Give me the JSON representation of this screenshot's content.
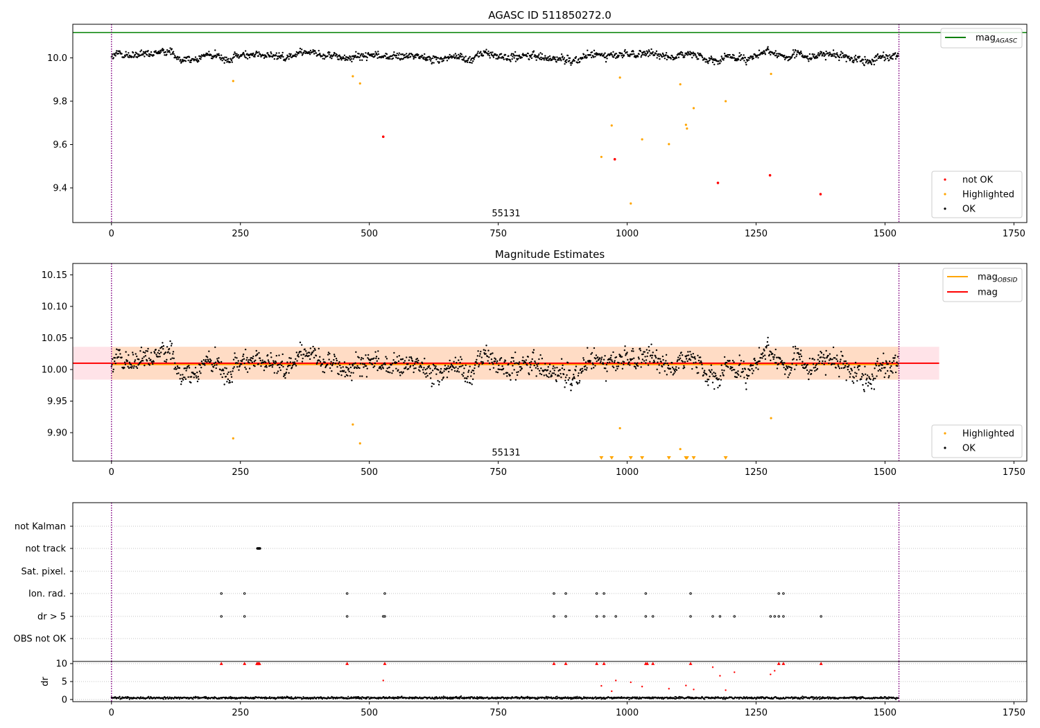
{
  "colors": {
    "ok": "#000000",
    "not_ok": "#ff0000",
    "highlighted": "#ffa500",
    "agasc_line": "#008000",
    "mag_line": "#ff0000",
    "obsid_line": "#ffa500",
    "obs_boundary": "#800080",
    "band": "#ffc0cb",
    "band_obsid": "#ffdab9",
    "grid": "#b0b0b0"
  },
  "chart_data": [
    {
      "type": "scatter",
      "title": "AGASC ID 511850272.0",
      "xlim": [
        -75,
        1775
      ],
      "ylim": [
        9.24,
        10.155
      ],
      "xticks": [
        0,
        250,
        500,
        750,
        1000,
        1250,
        1500,
        1750
      ],
      "yticks": [
        9.4,
        9.6,
        9.8,
        10.0
      ],
      "ytick_labels": [
        "9.4",
        "9.6",
        "9.8",
        "10.0"
      ],
      "annotation": "55131",
      "obs_boundaries": [
        0,
        1527
      ],
      "lines": [
        {
          "name": "mag",
          "sub": "AGASC",
          "y": 10.117,
          "x": [
            -75,
            1775
          ],
          "color": "#008000"
        }
      ],
      "legend_upper": [
        {
          "label": "mag",
          "sub": "AGASC",
          "kind": "line",
          "color": "#008000"
        }
      ],
      "legend_lower": [
        {
          "label": "not OK",
          "kind": "dot",
          "color": "#ff0000"
        },
        {
          "label": "Highlighted",
          "kind": "dot",
          "color": "#ffa500"
        },
        {
          "label": "OK",
          "kind": "dot",
          "color": "#000000"
        }
      ],
      "ok_series": {
        "n": 1527,
        "baseline": 10.008,
        "spread": 0.028
      },
      "highlighted": [
        {
          "x": 236,
          "y": 9.893
        },
        {
          "x": 468,
          "y": 9.915
        },
        {
          "x": 482,
          "y": 9.882
        },
        {
          "x": 950,
          "y": 9.543
        },
        {
          "x": 970,
          "y": 9.688
        },
        {
          "x": 986,
          "y": 9.909
        },
        {
          "x": 1007,
          "y": 9.328
        },
        {
          "x": 1029,
          "y": 9.624
        },
        {
          "x": 1081,
          "y": 9.602
        },
        {
          "x": 1103,
          "y": 9.878
        },
        {
          "x": 1114,
          "y": 9.691
        },
        {
          "x": 1116,
          "y": 9.674
        },
        {
          "x": 1129,
          "y": 9.768
        },
        {
          "x": 1191,
          "y": 9.8
        },
        {
          "x": 1279,
          "y": 9.926
        }
      ],
      "not_ok": [
        {
          "x": 527,
          "y": 9.636
        },
        {
          "x": 976,
          "y": 9.532
        },
        {
          "x": 1176,
          "y": 9.423
        },
        {
          "x": 1277,
          "y": 9.458
        },
        {
          "x": 1375,
          "y": 9.371
        }
      ]
    },
    {
      "type": "scatter",
      "title": "Magnitude Estimates",
      "xlim": [
        -75,
        1775
      ],
      "ylim": [
        9.855,
        10.168
      ],
      "xticks": [
        0,
        250,
        500,
        750,
        1000,
        1250,
        1500,
        1750
      ],
      "yticks": [
        9.9,
        9.95,
        10.0,
        10.05,
        10.1,
        10.15
      ],
      "ytick_labels": [
        "9.90",
        "9.95",
        "10.00",
        "10.05",
        "10.10",
        "10.15"
      ],
      "annotation": "55131",
      "obs_boundaries": [
        0,
        1527
      ],
      "lines": [
        {
          "name": "mag",
          "sub": "OBSID",
          "y": 10.008,
          "x": [
            0,
            1527
          ],
          "color": "#ffa500"
        },
        {
          "name": "mag",
          "sub": "",
          "y": 10.01,
          "x": [
            -75,
            1605
          ],
          "color": "#ff0000"
        }
      ],
      "bands": [
        {
          "x": [
            -75,
            1605
          ],
          "y": [
            9.984,
            10.036
          ],
          "color": "#ffc0cb",
          "opacity": 0.45
        },
        {
          "x": [
            0,
            1527
          ],
          "y": [
            9.984,
            10.036
          ],
          "color": "#ffdab9",
          "opacity": 0.75
        }
      ],
      "legend_upper": [
        {
          "label": "mag",
          "sub": "OBSID",
          "kind": "line",
          "color": "#ffa500"
        },
        {
          "label": "mag",
          "sub": "",
          "kind": "line",
          "color": "#ff0000"
        }
      ],
      "legend_lower": [
        {
          "label": "Highlighted",
          "kind": "dot",
          "color": "#ffa500"
        },
        {
          "label": "OK",
          "kind": "dot",
          "color": "#000000"
        }
      ],
      "ok_series": {
        "n": 1527,
        "baseline": 10.008,
        "spread": 0.028
      },
      "highlighted": [
        {
          "x": 236,
          "y": 9.891
        },
        {
          "x": 468,
          "y": 9.913
        },
        {
          "x": 482,
          "y": 9.883
        },
        {
          "x": 986,
          "y": 9.907
        },
        {
          "x": 1103,
          "y": 9.874
        },
        {
          "x": 1279,
          "y": 9.923
        }
      ],
      "clipped_low": [
        950,
        970,
        1007,
        1029,
        1081,
        1114,
        1116,
        1129,
        1191
      ]
    },
    {
      "type": "scatter",
      "title": "",
      "xlim": [
        -75,
        1775
      ],
      "ylim": [
        -0.6,
        10.6
      ],
      "xticks": [
        0,
        250,
        500,
        750,
        1000,
        1250,
        1500,
        1750
      ],
      "yticks": [
        0,
        5,
        10
      ],
      "ytick_labels": [
        "0",
        "5",
        "10"
      ],
      "ylabel": "dr",
      "obs_boundaries": [
        0,
        1527
      ],
      "flag_rows": [
        "not Kalman",
        "not track",
        "Sat. pixel.",
        "Ion. rad.",
        "dr > 5",
        "OBS not OK"
      ],
      "flags": {
        "not Kalman": [],
        "not track": [
          283,
          284,
          285,
          286,
          287,
          288
        ],
        "Sat. pixel.": [],
        "Ion. rad.": [
          213,
          258,
          457,
          530,
          858,
          881,
          941,
          955,
          1036,
          1123,
          1294,
          1303
        ],
        "dr > 5": [
          213,
          258,
          457,
          527,
          530,
          858,
          881,
          941,
          955,
          978,
          1036,
          1050,
          1123,
          1166,
          1180,
          1208,
          1278,
          1286,
          1294,
          1303,
          1376
        ],
        "OBS not OK": []
      },
      "dr_clipped": [
        213,
        258,
        282,
        284,
        285,
        287,
        457,
        530,
        858,
        881,
        941,
        955,
        1036,
        1039,
        1050,
        1123,
        1294,
        1303,
        1376
      ],
      "dr_points": [
        {
          "x": 527,
          "y": 5.3
        },
        {
          "x": 950,
          "y": 3.8
        },
        {
          "x": 970,
          "y": 2.3
        },
        {
          "x": 978,
          "y": 5.3
        },
        {
          "x": 1007,
          "y": 4.8
        },
        {
          "x": 1029,
          "y": 3.6
        },
        {
          "x": 1081,
          "y": 3.0
        },
        {
          "x": 1114,
          "y": 3.9
        },
        {
          "x": 1129,
          "y": 2.8
        },
        {
          "x": 1166,
          "y": 9.0
        },
        {
          "x": 1180,
          "y": 6.6
        },
        {
          "x": 1191,
          "y": 2.6
        },
        {
          "x": 1208,
          "y": 7.6
        },
        {
          "x": 1278,
          "y": 7.0
        },
        {
          "x": 1286,
          "y": 8.0
        }
      ],
      "dr_baseline": {
        "n": 1527,
        "mean": 0.45,
        "spread": 0.3
      }
    }
  ]
}
